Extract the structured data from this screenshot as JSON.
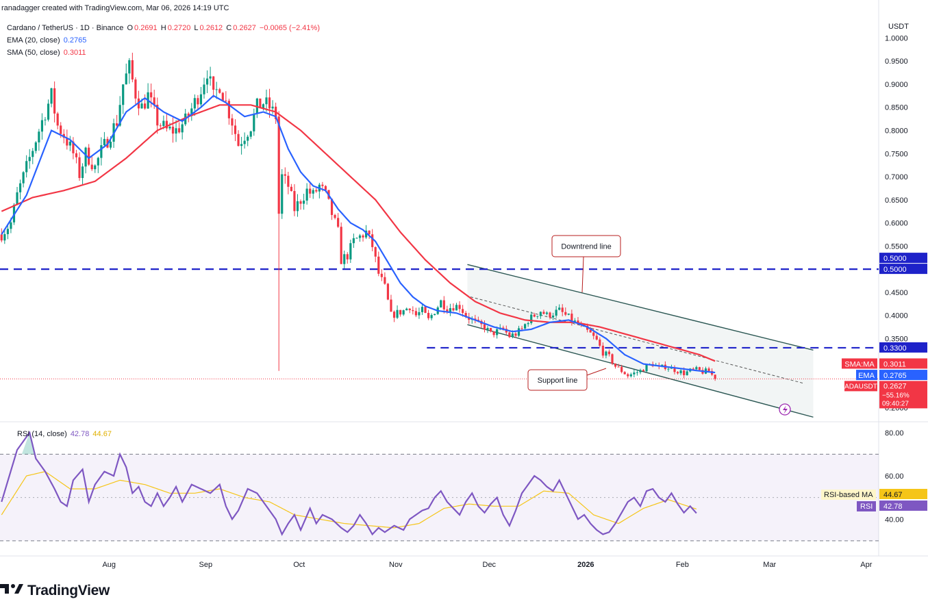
{
  "header": {
    "created_by": "ranadagger created with TradingView.com, Mar 06, 2026 14:19 UTC",
    "symbol": "Cardano / TetherUS · 1D · Binance",
    "o_label": "O",
    "o": "0.2691",
    "h_label": "H",
    "h": "0.2720",
    "l_label": "L",
    "l": "0.2612",
    "c_label": "C",
    "c": "0.2627",
    "change": "−0.0065 (−2.41%)",
    "ema_label": "EMA (20, close)",
    "ema_value": "0.2765",
    "sma_label": "SMA (50, close)",
    "sma_value": "0.3011",
    "rsi_label": "RSI (14, close)",
    "rsi_value": "42.78",
    "rsi_ma_value": "44.67"
  },
  "colors": {
    "up": "#089981",
    "down": "#f23645",
    "ema": "#2962ff",
    "sma": "#f23645",
    "rsi": "#7e57c2",
    "rsi_ma": "#f5c518",
    "level": "#1e22c9",
    "channel": "#2a5652",
    "annotation": "#b71c1c",
    "text": "#131722"
  },
  "annotations": {
    "downtrend": "Downtrend line",
    "support": "Support line"
  },
  "footer": {
    "brand": "TradingView"
  },
  "chart_data": {
    "type": "candlestick",
    "title": "Cardano / TetherUS · 1D · Binance",
    "price_axis_unit": "USDT",
    "price_ticks": [
      "1.0000",
      "0.9500",
      "0.9000",
      "0.8500",
      "0.8000",
      "0.7500",
      "0.7000",
      "0.6500",
      "0.6000",
      "0.5500",
      "0.4500",
      "0.4000",
      "0.3500",
      "0.2000"
    ],
    "price_tick_values": [
      1.0,
      0.95,
      0.9,
      0.85,
      0.8,
      0.75,
      0.7,
      0.65,
      0.6,
      0.55,
      0.45,
      0.4,
      0.35,
      0.2
    ],
    "time_labels": [
      "Aug",
      "Sep",
      "Oct",
      "Nov",
      "Dec",
      "2026",
      "Feb",
      "Mar",
      "Apr"
    ],
    "time_label_days": [
      35,
      66,
      96,
      127,
      157,
      188,
      219,
      247,
      278
    ],
    "x_range_days": [
      0,
      282
    ],
    "y_range": [
      0.17,
      1.045
    ],
    "horizontal_levels": [
      {
        "value": 0.5,
        "label": "0.5000"
      },
      {
        "value": 0.33,
        "label": "0.3300"
      }
    ],
    "channel": {
      "upper": [
        [
          150,
          0.51
        ],
        [
          261,
          0.325
        ]
      ],
      "lower": [
        [
          150,
          0.38
        ],
        [
          261,
          0.18
        ]
      ],
      "middle": [
        [
          151,
          0.44
        ],
        [
          258,
          0.253
        ]
      ]
    },
    "keypoints": {
      "close": [
        [
          0,
          0.575
        ],
        [
          3,
          0.6
        ],
        [
          5,
          0.66
        ],
        [
          8,
          0.72
        ],
        [
          11,
          0.78
        ],
        [
          14,
          0.84
        ],
        [
          16,
          0.875
        ],
        [
          18,
          0.81
        ],
        [
          20,
          0.79
        ],
        [
          23,
          0.75
        ],
        [
          25,
          0.705
        ],
        [
          27,
          0.75
        ],
        [
          30,
          0.72
        ],
        [
          32,
          0.755
        ],
        [
          34,
          0.78
        ],
        [
          37,
          0.82
        ],
        [
          39,
          0.9
        ],
        [
          41,
          0.935
        ],
        [
          43,
          0.88
        ],
        [
          45,
          0.85
        ],
        [
          47,
          0.875
        ],
        [
          50,
          0.82
        ],
        [
          53,
          0.8
        ],
        [
          56,
          0.8
        ],
        [
          59,
          0.82
        ],
        [
          62,
          0.86
        ],
        [
          64,
          0.89
        ],
        [
          66,
          0.93
        ],
        [
          68,
          0.87
        ],
        [
          70,
          0.9
        ],
        [
          72,
          0.86
        ],
        [
          74,
          0.82
        ],
        [
          76,
          0.77
        ],
        [
          78,
          0.79
        ],
        [
          80,
          0.81
        ],
        [
          82,
          0.85
        ],
        [
          84,
          0.86
        ],
        [
          86,
          0.85
        ],
        [
          88,
          0.83
        ],
        [
          89,
          0.62
        ],
        [
          90,
          0.7
        ],
        [
          92,
          0.68
        ],
        [
          94,
          0.63
        ],
        [
          96,
          0.65
        ],
        [
          98,
          0.67
        ],
        [
          100,
          0.66
        ],
        [
          102,
          0.68
        ],
        [
          104,
          0.66
        ],
        [
          106,
          0.62
        ],
        [
          108,
          0.58
        ],
        [
          109,
          0.52
        ],
        [
          111,
          0.53
        ],
        [
          113,
          0.56
        ],
        [
          115,
          0.57
        ],
        [
          117,
          0.58
        ],
        [
          119,
          0.55
        ],
        [
          121,
          0.49
        ],
        [
          123,
          0.46
        ],
        [
          125,
          0.4
        ],
        [
          127,
          0.405
        ],
        [
          129,
          0.41
        ],
        [
          131,
          0.42
        ],
        [
          133,
          0.4
        ],
        [
          135,
          0.41
        ],
        [
          137,
          0.39
        ],
        [
          139,
          0.41
        ],
        [
          141,
          0.43
        ],
        [
          143,
          0.415
        ],
        [
          145,
          0.42
        ],
        [
          147,
          0.42
        ],
        [
          149,
          0.4
        ],
        [
          151,
          0.39
        ],
        [
          153,
          0.38
        ],
        [
          155,
          0.375
        ],
        [
          157,
          0.36
        ],
        [
          159,
          0.365
        ],
        [
          161,
          0.37
        ],
        [
          163,
          0.355
        ],
        [
          165,
          0.36
        ],
        [
          167,
          0.37
        ],
        [
          169,
          0.39
        ],
        [
          171,
          0.4
        ],
        [
          173,
          0.41
        ],
        [
          175,
          0.4
        ],
        [
          177,
          0.405
        ],
        [
          179,
          0.41
        ],
        [
          181,
          0.4
        ],
        [
          183,
          0.39
        ],
        [
          185,
          0.38
        ],
        [
          187,
          0.37
        ],
        [
          189,
          0.36
        ],
        [
          191,
          0.345
        ],
        [
          193,
          0.32
        ],
        [
          195,
          0.31
        ],
        [
          197,
          0.29
        ],
        [
          199,
          0.28
        ],
        [
          201,
          0.27
        ],
        [
          203,
          0.275
        ],
        [
          205,
          0.28
        ],
        [
          207,
          0.29
        ],
        [
          209,
          0.295
        ],
        [
          211,
          0.285
        ],
        [
          213,
          0.29
        ],
        [
          215,
          0.285
        ],
        [
          217,
          0.28
        ],
        [
          219,
          0.275
        ],
        [
          221,
          0.28
        ],
        [
          223,
          0.282
        ],
        [
          225,
          0.278
        ],
        [
          227,
          0.28
        ],
        [
          229,
          0.2627
        ]
      ],
      "ema20": [
        [
          0,
          0.575
        ],
        [
          8,
          0.66
        ],
        [
          16,
          0.8
        ],
        [
          22,
          0.78
        ],
        [
          28,
          0.74
        ],
        [
          34,
          0.77
        ],
        [
          40,
          0.84
        ],
        [
          46,
          0.87
        ],
        [
          52,
          0.84
        ],
        [
          58,
          0.82
        ],
        [
          64,
          0.85
        ],
        [
          68,
          0.875
        ],
        [
          72,
          0.86
        ],
        [
          78,
          0.83
        ],
        [
          84,
          0.84
        ],
        [
          88,
          0.83
        ],
        [
          92,
          0.76
        ],
        [
          96,
          0.71
        ],
        [
          100,
          0.68
        ],
        [
          104,
          0.67
        ],
        [
          108,
          0.63
        ],
        [
          112,
          0.6
        ],
        [
          116,
          0.585
        ],
        [
          120,
          0.56
        ],
        [
          124,
          0.515
        ],
        [
          128,
          0.47
        ],
        [
          132,
          0.44
        ],
        [
          136,
          0.42
        ],
        [
          140,
          0.41
        ],
        [
          146,
          0.405
        ],
        [
          152,
          0.39
        ],
        [
          158,
          0.375
        ],
        [
          164,
          0.365
        ],
        [
          170,
          0.37
        ],
        [
          176,
          0.385
        ],
        [
          182,
          0.39
        ],
        [
          188,
          0.375
        ],
        [
          194,
          0.35
        ],
        [
          200,
          0.315
        ],
        [
          206,
          0.295
        ],
        [
          212,
          0.29
        ],
        [
          218,
          0.285
        ],
        [
          224,
          0.28
        ],
        [
          229,
          0.2765
        ]
      ],
      "sma50": [
        [
          0,
          0.625
        ],
        [
          10,
          0.655
        ],
        [
          20,
          0.67
        ],
        [
          30,
          0.69
        ],
        [
          40,
          0.74
        ],
        [
          50,
          0.8
        ],
        [
          60,
          0.83
        ],
        [
          70,
          0.855
        ],
        [
          80,
          0.855
        ],
        [
          88,
          0.84
        ],
        [
          96,
          0.8
        ],
        [
          104,
          0.75
        ],
        [
          112,
          0.7
        ],
        [
          120,
          0.65
        ],
        [
          128,
          0.58
        ],
        [
          136,
          0.52
        ],
        [
          144,
          0.47
        ],
        [
          152,
          0.43
        ],
        [
          160,
          0.405
        ],
        [
          168,
          0.39
        ],
        [
          176,
          0.385
        ],
        [
          184,
          0.385
        ],
        [
          192,
          0.375
        ],
        [
          200,
          0.36
        ],
        [
          208,
          0.345
        ],
        [
          216,
          0.33
        ],
        [
          224,
          0.315
        ],
        [
          229,
          0.3011
        ]
      ]
    },
    "last_values": {
      "sma": {
        "label": "SMA:MA",
        "value": "0.3011"
      },
      "ema": {
        "label": "EMA",
        "value": "0.2765"
      },
      "price": {
        "label": "ADAUSDT",
        "value": "0.2627",
        "change": "−55.16%",
        "countdown": "09:40:27"
      }
    },
    "rsi": {
      "ticks": [
        "80.00",
        "60.00",
        "40.00"
      ],
      "tick_values": [
        80,
        60,
        40
      ],
      "band": [
        30,
        70
      ],
      "mid": 50,
      "y_range": [
        23,
        85
      ],
      "labels": {
        "ma_label": "RSI-based MA",
        "ma_value": "44.67",
        "rsi_label": "RSI",
        "rsi_value": "42.78"
      },
      "keypoints": [
        [
          0,
          48
        ],
        [
          5,
          72
        ],
        [
          9,
          80
        ],
        [
          11,
          68
        ],
        [
          14,
          62
        ],
        [
          17,
          54
        ],
        [
          19,
          48
        ],
        [
          21,
          46
        ],
        [
          23,
          58
        ],
        [
          26,
          63
        ],
        [
          28,
          48
        ],
        [
          30,
          56
        ],
        [
          33,
          62
        ],
        [
          36,
          60
        ],
        [
          38,
          70
        ],
        [
          40,
          64
        ],
        [
          42,
          52
        ],
        [
          44,
          55
        ],
        [
          46,
          48
        ],
        [
          48,
          46
        ],
        [
          50,
          52
        ],
        [
          52,
          46
        ],
        [
          54,
          50
        ],
        [
          56,
          55
        ],
        [
          58,
          48
        ],
        [
          61,
          56
        ],
        [
          64,
          54
        ],
        [
          67,
          52
        ],
        [
          70,
          56
        ],
        [
          72,
          46
        ],
        [
          74,
          40
        ],
        [
          76,
          44
        ],
        [
          79,
          54
        ],
        [
          82,
          52
        ],
        [
          85,
          46
        ],
        [
          88,
          40
        ],
        [
          90,
          33
        ],
        [
          92,
          38
        ],
        [
          94,
          42
        ],
        [
          96,
          35
        ],
        [
          99,
          45
        ],
        [
          101,
          38
        ],
        [
          103,
          42
        ],
        [
          106,
          40
        ],
        [
          109,
          36
        ],
        [
          111,
          34
        ],
        [
          113,
          37
        ],
        [
          115,
          42
        ],
        [
          117,
          38
        ],
        [
          119,
          33
        ],
        [
          121,
          36
        ],
        [
          123,
          34
        ],
        [
          126,
          37
        ],
        [
          129,
          35
        ],
        [
          131,
          40
        ],
        [
          133,
          42
        ],
        [
          135,
          44
        ],
        [
          137,
          45
        ],
        [
          139,
          50
        ],
        [
          141,
          53
        ],
        [
          143,
          48
        ],
        [
          145,
          45
        ],
        [
          147,
          42
        ],
        [
          149,
          48
        ],
        [
          151,
          52
        ],
        [
          153,
          46
        ],
        [
          155,
          43
        ],
        [
          157,
          47
        ],
        [
          159,
          50
        ],
        [
          161,
          42
        ],
        [
          163,
          37
        ],
        [
          165,
          44
        ],
        [
          167,
          52
        ],
        [
          169,
          56
        ],
        [
          171,
          60
        ],
        [
          173,
          58
        ],
        [
          175,
          55
        ],
        [
          177,
          53
        ],
        [
          179,
          58
        ],
        [
          181,
          52
        ],
        [
          183,
          46
        ],
        [
          185,
          40
        ],
        [
          187,
          42
        ],
        [
          189,
          38
        ],
        [
          191,
          35
        ],
        [
          193,
          33
        ],
        [
          195,
          34
        ],
        [
          197,
          38
        ],
        [
          199,
          43
        ],
        [
          201,
          48
        ],
        [
          203,
          50
        ],
        [
          205,
          46
        ],
        [
          207,
          53
        ],
        [
          209,
          54
        ],
        [
          211,
          50
        ],
        [
          213,
          48
        ],
        [
          215,
          52
        ],
        [
          217,
          47
        ],
        [
          219,
          43
        ],
        [
          221,
          46
        ],
        [
          223,
          42.78
        ]
      ],
      "ma_keypoints": [
        [
          0,
          42
        ],
        [
          8,
          60
        ],
        [
          14,
          62
        ],
        [
          22,
          54
        ],
        [
          30,
          54
        ],
        [
          38,
          58
        ],
        [
          46,
          56
        ],
        [
          54,
          52
        ],
        [
          62,
          52
        ],
        [
          70,
          54
        ],
        [
          78,
          50
        ],
        [
          86,
          48
        ],
        [
          94,
          42
        ],
        [
          102,
          40
        ],
        [
          110,
          38
        ],
        [
          118,
          37
        ],
        [
          126,
          36
        ],
        [
          134,
          38
        ],
        [
          142,
          45
        ],
        [
          150,
          47
        ],
        [
          158,
          46
        ],
        [
          166,
          46
        ],
        [
          174,
          53
        ],
        [
          182,
          52
        ],
        [
          190,
          42
        ],
        [
          198,
          38
        ],
        [
          206,
          45
        ],
        [
          214,
          49
        ],
        [
          223,
          44.67
        ]
      ]
    }
  }
}
